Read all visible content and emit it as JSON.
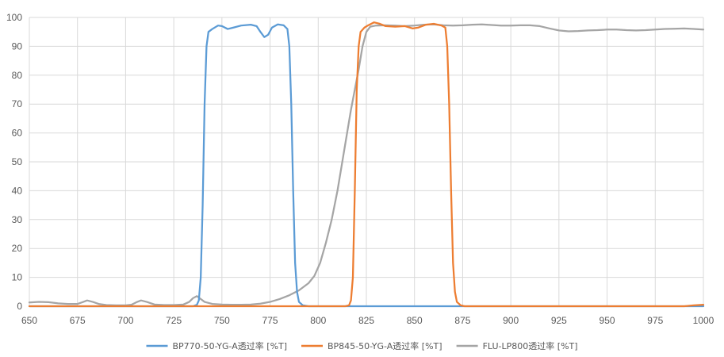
{
  "chart_data": {
    "type": "line",
    "title": "",
    "xlabel": "",
    "ylabel": "",
    "xlim": [
      650,
      1000
    ],
    "ylim": [
      0,
      100
    ],
    "x_ticks": [
      "650",
      "675",
      "700",
      "725",
      "750",
      "775",
      "800",
      "825",
      "850",
      "875",
      "900",
      "925",
      "950",
      "975",
      "1000"
    ],
    "y_ticks": [
      "0",
      "10",
      "20",
      "30",
      "40",
      "50",
      "60",
      "70",
      "80",
      "90",
      "100"
    ],
    "grid": true,
    "legend_position": "bottom",
    "series": [
      {
        "name": "BP770-50-YG-A透过率 [%T]",
        "color": "#5b9bd5",
        "points": [
          [
            650,
            0
          ],
          [
            735,
            0
          ],
          [
            737,
            0.5
          ],
          [
            738,
            2
          ],
          [
            739,
            10
          ],
          [
            740,
            35
          ],
          [
            741,
            70
          ],
          [
            742,
            90
          ],
          [
            743,
            95
          ],
          [
            745,
            96
          ],
          [
            748,
            97.2
          ],
          [
            750,
            97
          ],
          [
            753,
            96
          ],
          [
            756,
            96.5
          ],
          [
            760,
            97.2
          ],
          [
            765,
            97.5
          ],
          [
            768,
            97
          ],
          [
            770,
            95
          ],
          [
            772,
            93.2
          ],
          [
            774,
            94
          ],
          [
            776,
            96.5
          ],
          [
            779,
            97.6
          ],
          [
            782,
            97.3
          ],
          [
            784,
            96
          ],
          [
            785,
            90
          ],
          [
            786,
            70
          ],
          [
            787,
            40
          ],
          [
            788,
            15
          ],
          [
            789,
            5
          ],
          [
            790,
            1.5
          ],
          [
            792,
            0.3
          ],
          [
            795,
            0
          ],
          [
            1000,
            0
          ]
        ]
      },
      {
        "name": "BP845-50-YG-A透过率 [%T]",
        "color": "#ed7d31",
        "points": [
          [
            650,
            0
          ],
          [
            814,
            0
          ],
          [
            816,
            0.3
          ],
          [
            817,
            2
          ],
          [
            818,
            10
          ],
          [
            819,
            40
          ],
          [
            820,
            75
          ],
          [
            821,
            90
          ],
          [
            822,
            95
          ],
          [
            824,
            96.5
          ],
          [
            826,
            97.3
          ],
          [
            829,
            98.3
          ],
          [
            832,
            97.8
          ],
          [
            835,
            97
          ],
          [
            840,
            96.8
          ],
          [
            845,
            97
          ],
          [
            849,
            96.2
          ],
          [
            852,
            96.5
          ],
          [
            856,
            97.5
          ],
          [
            860,
            97.8
          ],
          [
            864,
            97.2
          ],
          [
            866,
            96.5
          ],
          [
            867,
            90
          ],
          [
            868,
            70
          ],
          [
            869,
            40
          ],
          [
            870,
            15
          ],
          [
            871,
            5
          ],
          [
            872,
            1.5
          ],
          [
            874,
            0.3
          ],
          [
            876,
            0
          ],
          [
            990,
            0
          ],
          [
            995,
            0.3
          ],
          [
            1000,
            0.5
          ]
        ]
      },
      {
        "name": "FLU-LP800透过率 [%T]",
        "color": "#a5a5a5",
        "points": [
          [
            650,
            1.3
          ],
          [
            655,
            1.5
          ],
          [
            660,
            1.4
          ],
          [
            665,
            1
          ],
          [
            670,
            0.8
          ],
          [
            675,
            0.8
          ],
          [
            678,
            1.5
          ],
          [
            680,
            2
          ],
          [
            683,
            1.5
          ],
          [
            686,
            0.8
          ],
          [
            690,
            0.4
          ],
          [
            695,
            0.3
          ],
          [
            700,
            0.3
          ],
          [
            703,
            0.5
          ],
          [
            706,
            1.5
          ],
          [
            708,
            2
          ],
          [
            711,
            1.5
          ],
          [
            715,
            0.6
          ],
          [
            720,
            0.4
          ],
          [
            725,
            0.4
          ],
          [
            730,
            0.6
          ],
          [
            733,
            1.5
          ],
          [
            735,
            2.8
          ],
          [
            737,
            3.5
          ],
          [
            739,
            2.5
          ],
          [
            741,
            1.5
          ],
          [
            745,
            0.8
          ],
          [
            750,
            0.6
          ],
          [
            755,
            0.5
          ],
          [
            760,
            0.5
          ],
          [
            765,
            0.6
          ],
          [
            770,
            0.9
          ],
          [
            775,
            1.5
          ],
          [
            780,
            2.5
          ],
          [
            785,
            3.8
          ],
          [
            790,
            5.5
          ],
          [
            795,
            8
          ],
          [
            798,
            10.5
          ],
          [
            801,
            15
          ],
          [
            804,
            22
          ],
          [
            807,
            30
          ],
          [
            810,
            40
          ],
          [
            812,
            48
          ],
          [
            815,
            60
          ],
          [
            817,
            68
          ],
          [
            819,
            75
          ],
          [
            821,
            82
          ],
          [
            823,
            90
          ],
          [
            825,
            95
          ],
          [
            827,
            96.8
          ],
          [
            830,
            97.2
          ],
          [
            835,
            97.3
          ],
          [
            840,
            97.2
          ],
          [
            845,
            97
          ],
          [
            850,
            97.2
          ],
          [
            855,
            97.5
          ],
          [
            860,
            97.6
          ],
          [
            865,
            97.3
          ],
          [
            870,
            97.2
          ],
          [
            875,
            97.3
          ],
          [
            880,
            97.5
          ],
          [
            885,
            97.6
          ],
          [
            890,
            97.4
          ],
          [
            895,
            97.2
          ],
          [
            900,
            97.2
          ],
          [
            905,
            97.3
          ],
          [
            910,
            97.3
          ],
          [
            915,
            97
          ],
          [
            920,
            96.2
          ],
          [
            925,
            95.5
          ],
          [
            930,
            95.2
          ],
          [
            935,
            95.3
          ],
          [
            940,
            95.5
          ],
          [
            945,
            95.6
          ],
          [
            950,
            95.8
          ],
          [
            955,
            95.8
          ],
          [
            960,
            95.6
          ],
          [
            965,
            95.5
          ],
          [
            970,
            95.6
          ],
          [
            975,
            95.8
          ],
          [
            980,
            96
          ],
          [
            985,
            96.1
          ],
          [
            990,
            96.2
          ],
          [
            995,
            96
          ],
          [
            1000,
            95.8
          ]
        ]
      }
    ]
  }
}
